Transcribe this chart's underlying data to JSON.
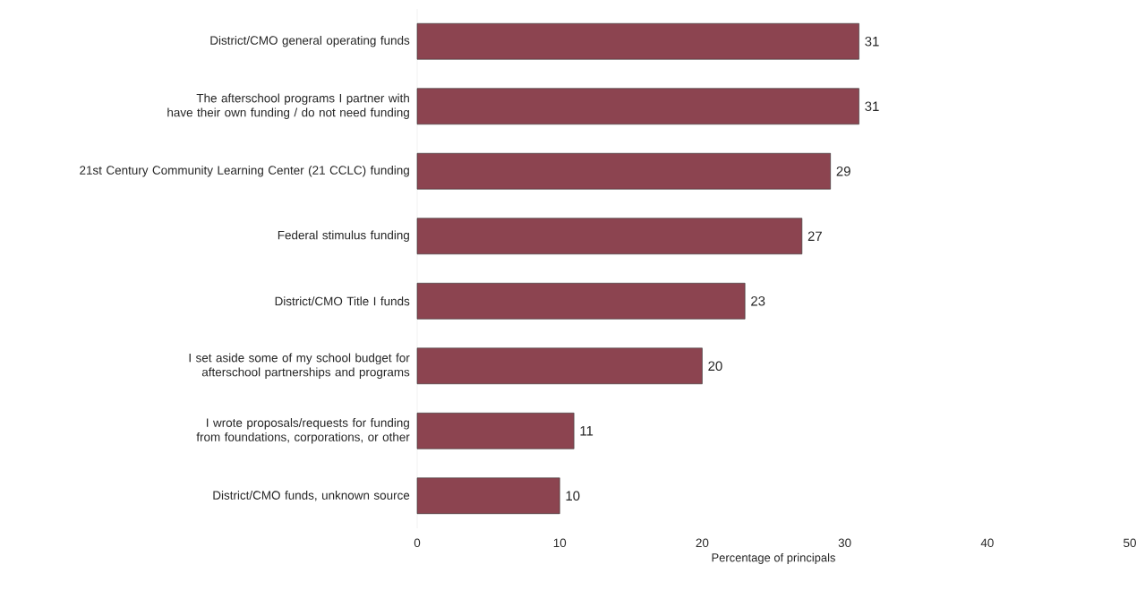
{
  "chart_data": {
    "type": "bar",
    "orientation": "horizontal",
    "categories": [
      "District/CMO general operating funds",
      "The afterschool programs I partner with have their own funding / do not need funding",
      "21st Century Community Learning Center (21 CCLC) funding",
      "Federal stimulus funding",
      "District/CMO Title I funds",
      "I set aside some of my school budget for afterschool partnerships and programs",
      "I wrote proposals/requests for funding from foundations, corporations, or other",
      "District/CMO funds, unknown source"
    ],
    "values": [
      31,
      31,
      29,
      27,
      23,
      20,
      11,
      10
    ],
    "color": "#8c4450",
    "xlim": [
      0,
      50
    ],
    "xticks": [
      0,
      10,
      20,
      30,
      40,
      50
    ],
    "xlabel": "Percentage of principals",
    "data_labels": true
  }
}
